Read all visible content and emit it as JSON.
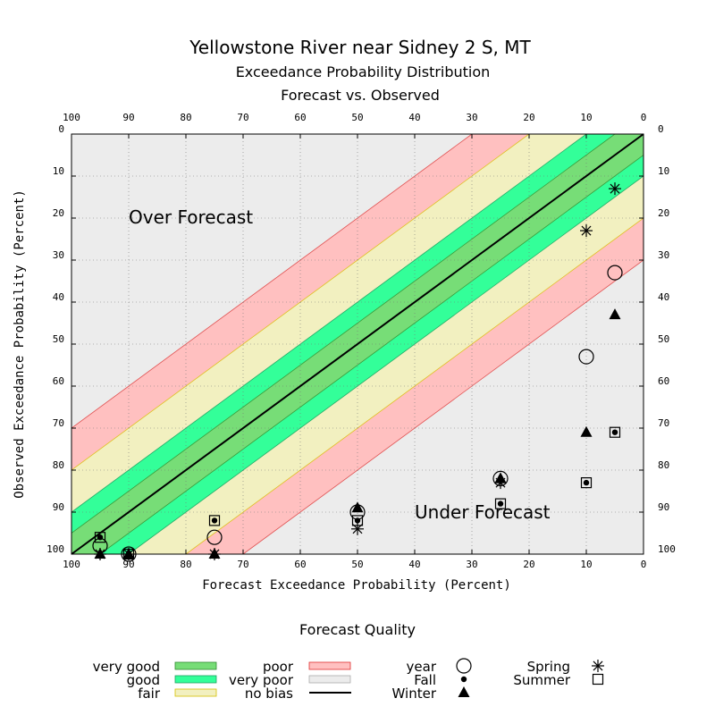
{
  "chart_data": {
    "type": "scatter",
    "title": "Yellowstone River near Sidney 2 S, MT",
    "subtitle1": "Exceedance Probability Distribution",
    "subtitle2": "Forecast vs. Observed",
    "xlabel": "Forecast Exceedance Probability (Percent)",
    "ylabel": "Observed Exceedance Probability (Percent)",
    "xlim": [
      100,
      0
    ],
    "ylim": [
      0,
      100
    ],
    "ticks": [
      100,
      90,
      80,
      70,
      60,
      50,
      40,
      30,
      20,
      10,
      0
    ],
    "grid": true,
    "region_labels": {
      "over": "Over Forecast",
      "under": "Under Forecast"
    },
    "bands": {
      "very_good": 5,
      "good": 10,
      "fair": 20,
      "poor": 30
    },
    "colors": {
      "plot_bg": "#ececec",
      "very_good": "#77dd77",
      "good": "#33ff99",
      "fair": "#f2f0c0",
      "poor": "#ffc0c0",
      "no_bias": "#000000"
    },
    "series": [
      {
        "name": "year",
        "marker": "circle",
        "points": [
          [
            95,
            98
          ],
          [
            90,
            100
          ],
          [
            75,
            96
          ],
          [
            50,
            90
          ],
          [
            25,
            82
          ],
          [
            10,
            53
          ],
          [
            5,
            33
          ]
        ]
      },
      {
        "name": "Fall",
        "marker": "dot",
        "points": [
          [
            95,
            96
          ],
          [
            90,
            100
          ],
          [
            75,
            92
          ],
          [
            50,
            92
          ],
          [
            25,
            88
          ],
          [
            10,
            83
          ],
          [
            5,
            71
          ]
        ]
      },
      {
        "name": "Winter",
        "marker": "triangle",
        "points": [
          [
            95,
            100
          ],
          [
            90,
            100
          ],
          [
            75,
            100
          ],
          [
            50,
            89
          ],
          [
            25,
            82
          ],
          [
            10,
            71
          ],
          [
            5,
            43
          ]
        ]
      },
      {
        "name": "Spring",
        "marker": "asterisk",
        "points": [
          [
            95,
            100
          ],
          [
            90,
            100
          ],
          [
            75,
            100
          ],
          [
            50,
            94
          ],
          [
            25,
            83
          ],
          [
            10,
            23
          ],
          [
            5,
            13
          ]
        ]
      },
      {
        "name": "Summer",
        "marker": "square",
        "points": [
          [
            95,
            96
          ],
          [
            90,
            100
          ],
          [
            75,
            92
          ],
          [
            50,
            92
          ],
          [
            25,
            88
          ],
          [
            10,
            83
          ],
          [
            5,
            71
          ]
        ]
      }
    ]
  },
  "legend": {
    "title": "Forecast Quality",
    "quality": [
      {
        "label": "very good",
        "color": "#77dd77",
        "stroke": "#2e8b2e"
      },
      {
        "label": "good",
        "color": "#33ff99",
        "stroke": "#1fa060"
      },
      {
        "label": "fair",
        "color": "#f2f0c0",
        "stroke": "#d4c000"
      },
      {
        "label": "poor",
        "color": "#ffc0c0",
        "stroke": "#e03030"
      },
      {
        "label": "very poor",
        "color": "#ececec",
        "stroke": "#aaaaaa"
      },
      {
        "label": "no bias",
        "line": true
      }
    ],
    "markers": [
      {
        "label": "year",
        "marker": "circle"
      },
      {
        "label": "Fall",
        "marker": "dot"
      },
      {
        "label": "Winter",
        "marker": "triangle"
      },
      {
        "label": "Spring",
        "marker": "asterisk"
      },
      {
        "label": "Summer",
        "marker": "square"
      }
    ]
  }
}
